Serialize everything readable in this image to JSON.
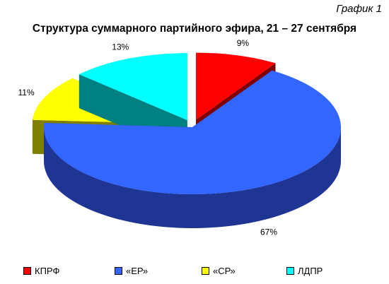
{
  "figure": {
    "caption": "График 1",
    "title": "Структура суммарного партийного эфира, 21 – 27 сентября"
  },
  "chart_data": {
    "type": "pie",
    "variant": "3d-exploded",
    "categories": [
      "КПРФ",
      "«ЕР»",
      "«СР»",
      "ЛДПР"
    ],
    "values": [
      9,
      67,
      11,
      13
    ],
    "data_labels": [
      "9%",
      "67%",
      "11%",
      "13%"
    ],
    "colors": {
      "КПРФ": "#ff0000",
      "«ЕР»": "#3366ff",
      "«СР»": "#ffff00",
      "ЛДПР": "#00ffff"
    },
    "side_colors": {
      "КПРФ": "#800000",
      "«ЕР»": "#1f3593",
      "«СР»": "#808000",
      "ЛДПР": "#008080"
    },
    "legend_position": "bottom"
  }
}
